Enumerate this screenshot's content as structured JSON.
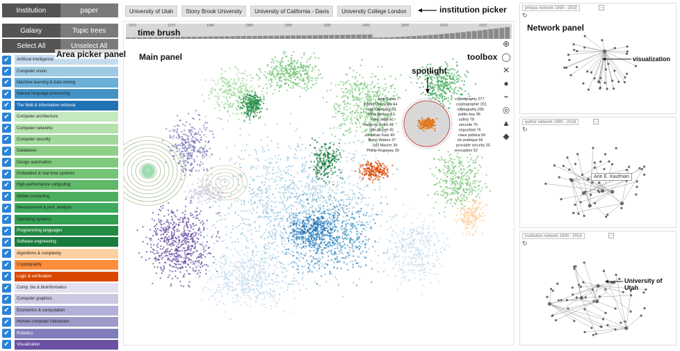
{
  "left": {
    "tabs": [
      "Institution",
      "paper"
    ],
    "view_tabs": [
      "Galaxy",
      "Topic trees"
    ],
    "select_all": "Select All",
    "unselect_all": "Unselect All",
    "area_picker_label": "Area picker panel",
    "areas": [
      {
        "label": "Artificial intelligence",
        "color": "#c6dbef"
      },
      {
        "label": "Computer vision",
        "color": "#9ecae1"
      },
      {
        "label": "Machine learning & data mining",
        "color": "#6baed6"
      },
      {
        "label": "Natural language processing",
        "color": "#4292c6"
      },
      {
        "label": "The Web & information retrieval",
        "color": "#2171b5"
      },
      {
        "label": "Computer architecture",
        "color": "#c7e9c0"
      },
      {
        "label": "Computer networks",
        "color": "#b5e1ad"
      },
      {
        "label": "Computer security",
        "color": "#a1d99b"
      },
      {
        "label": "Databases",
        "color": "#8fd088"
      },
      {
        "label": "Design automation",
        "color": "#7fc97f"
      },
      {
        "label": "Embedded & real-time systems",
        "color": "#74c476"
      },
      {
        "label": "High-performance computing",
        "color": "#5fb768"
      },
      {
        "label": "Mobile computing",
        "color": "#4daf5d"
      },
      {
        "label": "Measurement & perf. analysis",
        "color": "#41ab5d"
      },
      {
        "label": "Operating systems",
        "color": "#33a052"
      },
      {
        "label": "Programming languages",
        "color": "#238b45"
      },
      {
        "label": "Software engineering",
        "color": "#1a7c3c"
      },
      {
        "label": "Algorithms & complexity",
        "color": "#fdd0a2"
      },
      {
        "label": "Cryptography",
        "color": "#fd8d3c"
      },
      {
        "label": "Logic & verification",
        "color": "#d94801"
      },
      {
        "label": "Comp. bio & bioinformatics",
        "color": "#e3e2f0"
      },
      {
        "label": "Computer graphics",
        "color": "#cbc9e2"
      },
      {
        "label": "Economics & computation",
        "color": "#b2b0d6"
      },
      {
        "label": "Human-computer interaction",
        "color": "#9e9ac8"
      },
      {
        "label": "Robotics",
        "color": "#807dba"
      },
      {
        "label": "Visualization",
        "color": "#6a51a3"
      }
    ]
  },
  "institution_picker": {
    "items": [
      "University of Utah",
      "Stony Brook University",
      "University of California - Davis",
      "University College London"
    ],
    "annotation": "institution picker"
  },
  "main": {
    "label": "Main panel",
    "time_brush_label": "time brush",
    "time_brush_years": [
      "1970",
      "1975",
      "1980",
      "1985",
      "1990",
      "1995",
      "2000",
      "2005",
      "2010",
      "2015"
    ],
    "spotlight_label": "spotlight",
    "toolbox_label": "toolbox",
    "toolbox_icons": [
      "zoom-in-icon",
      "circle-select-icon",
      "fit-view-icon",
      "palette-icon",
      "trend-chart-icon",
      "target-icon",
      "shapes-icon",
      "fill-icon"
    ],
    "spotlight_authors": [
      "Amit Sahai 7",
      "Rafail Ostrovsky 54",
      "Ivan Damgård 52",
      "Mihir Bellare 51",
      "Yuval Ishai 51",
      "Yevgeniy Dodis 42",
      "Dan Boneh 41",
      "Jonathan Katz 40",
      "Brent Waters 37",
      "Ueli Maurer 36",
      "Phillip Rogaway 39"
    ],
    "spotlight_keywords": [
      "cryptography 277",
      "cryptographie 201",
      "criptografía 200",
      "public key 95",
      "safety 78",
      "securite 76",
      "seguridad 76",
      "clave pública 56",
      "cle publique 56",
      "provable security 55",
      "encryption 52"
    ]
  },
  "right": {
    "network_panel_label": "Network panel",
    "panels": [
      {
        "header": "phrase network 1990 - 2018",
        "callout": "visualization"
      },
      {
        "header": "author network 1990 - 2018",
        "callout": "Arie E. Kaufman"
      },
      {
        "header": "institution network 1990 - 2018",
        "callout": "University of Utah"
      }
    ]
  }
}
